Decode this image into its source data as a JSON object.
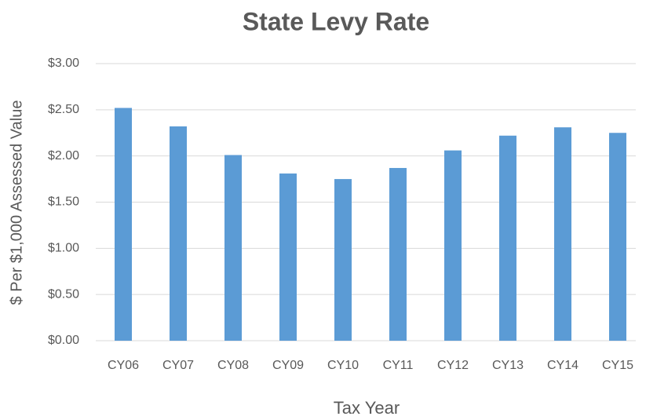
{
  "chart_data": {
    "type": "bar",
    "title": "State Levy Rate",
    "x_label": "Tax Year",
    "y_label": "$ Per $1,000 Assessed Value",
    "categories": [
      "CY06",
      "CY07",
      "CY08",
      "CY09",
      "CY10",
      "CY11",
      "CY12",
      "CY13",
      "CY14",
      "CY15"
    ],
    "values": [
      2.52,
      2.32,
      2.01,
      1.81,
      1.75,
      1.87,
      2.06,
      2.22,
      2.31,
      2.25
    ],
    "color": "#5b9bd5",
    "ylim": [
      0,
      3
    ],
    "yticks": [
      {
        "value": 0,
        "label": "$0.00"
      },
      {
        "value": 0.5,
        "label": "$0.50"
      },
      {
        "value": 1,
        "label": "$1.00"
      },
      {
        "value": 1.5,
        "label": "$1.50"
      },
      {
        "value": 2,
        "label": "$2.00"
      },
      {
        "value": 2.5,
        "label": "$2.50"
      },
      {
        "value": 3,
        "label": "$3.00"
      }
    ],
    "grid": true
  }
}
